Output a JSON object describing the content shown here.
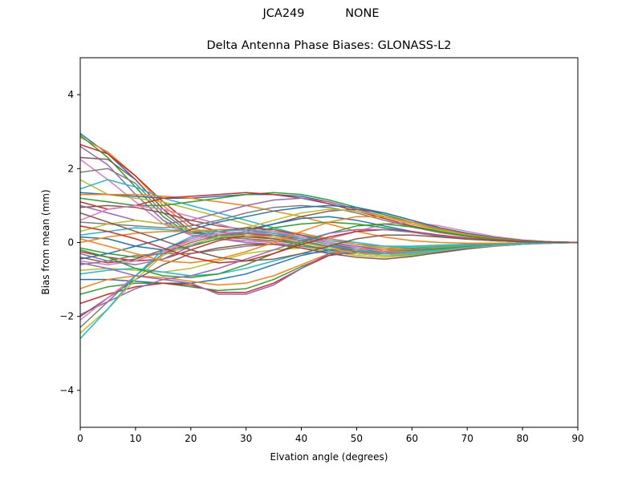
{
  "figure": {
    "suptitle": "JCA249           NONE",
    "title": "Delta Antenna Phase Biases: GLONASS-L2"
  },
  "chart_data": {
    "type": "line",
    "suptitle": "JCA249           NONE",
    "title": "Delta Antenna Phase Biases: GLONASS-L2",
    "xlabel": "Elvation angle (degrees)",
    "ylabel": "Bias from mean (mm)",
    "xlim": [
      0,
      90
    ],
    "ylim": [
      -5,
      5
    ],
    "xticks": [
      0,
      10,
      20,
      30,
      40,
      50,
      60,
      70,
      80,
      90
    ],
    "yticks": [
      -4,
      -2,
      0,
      2,
      4
    ],
    "ytick_labels": [
      "−4",
      "−2",
      "0",
      "2",
      "4"
    ],
    "grid": false,
    "legend": "none",
    "x": [
      0,
      5,
      10,
      15,
      20,
      25,
      30,
      35,
      40,
      45,
      50,
      55,
      60,
      65,
      70,
      75,
      80,
      85,
      90
    ],
    "colors": [
      "#1f77b4",
      "#ff7f0e",
      "#2ca02c",
      "#d62728",
      "#9467bd",
      "#8c564b",
      "#e377c2",
      "#7f7f7f",
      "#bcbd22",
      "#17becf"
    ],
    "series": [
      {
        "name": "s1",
        "values": [
          2.95,
          2.4,
          1.7,
          0.9,
          0.3,
          0.1,
          0.05,
          0.0,
          -0.1,
          -0.2,
          -0.3,
          -0.3,
          -0.25,
          -0.2,
          -0.15,
          -0.1,
          -0.05,
          -0.02,
          0
        ]
      },
      {
        "name": "s2",
        "values": [
          2.85,
          2.45,
          1.8,
          1.0,
          0.4,
          0.2,
          0.1,
          0.0,
          -0.1,
          -0.15,
          -0.25,
          -0.3,
          -0.25,
          -0.2,
          -0.12,
          -0.08,
          -0.04,
          -0.02,
          0
        ]
      },
      {
        "name": "s3",
        "values": [
          2.9,
          2.3,
          1.5,
          0.7,
          0.2,
          0.15,
          0.1,
          0.05,
          -0.05,
          -0.2,
          -0.3,
          -0.35,
          -0.3,
          -0.2,
          -0.12,
          -0.08,
          -0.04,
          -0.02,
          0
        ]
      },
      {
        "name": "s4",
        "values": [
          2.65,
          2.4,
          1.8,
          1.1,
          0.5,
          0.3,
          0.2,
          0.1,
          0.0,
          -0.1,
          -0.2,
          -0.25,
          -0.2,
          -0.15,
          -0.1,
          -0.06,
          -0.03,
          -0.01,
          0
        ]
      },
      {
        "name": "s5",
        "values": [
          2.6,
          2.1,
          1.3,
          0.6,
          0.2,
          0.1,
          0.0,
          -0.05,
          -0.1,
          -0.2,
          -0.3,
          -0.3,
          -0.25,
          -0.18,
          -0.1,
          -0.06,
          -0.03,
          -0.01,
          0
        ]
      },
      {
        "name": "s6",
        "values": [
          2.3,
          2.25,
          1.7,
          0.9,
          0.3,
          0.2,
          0.15,
          0.1,
          0.0,
          -0.1,
          -0.2,
          -0.2,
          -0.18,
          -0.12,
          -0.08,
          -0.05,
          -0.02,
          -0.01,
          0
        ]
      },
      {
        "name": "s7",
        "values": [
          2.25,
          1.7,
          1.1,
          0.5,
          0.2,
          0.1,
          0.05,
          0.0,
          -0.1,
          -0.2,
          -0.25,
          -0.3,
          -0.25,
          -0.18,
          -0.1,
          -0.06,
          -0.03,
          -0.01,
          0
        ]
      },
      {
        "name": "s8",
        "values": [
          1.9,
          2.0,
          1.6,
          0.8,
          0.25,
          0.2,
          0.1,
          0.05,
          0.0,
          -0.1,
          -0.15,
          -0.2,
          -0.15,
          -0.1,
          -0.06,
          -0.04,
          -0.02,
          -0.01,
          0
        ]
      },
      {
        "name": "s9",
        "values": [
          1.7,
          1.3,
          1.2,
          1.1,
          0.9,
          0.7,
          0.5,
          0.3,
          0.1,
          0.0,
          -0.1,
          -0.15,
          -0.12,
          -0.08,
          -0.05,
          -0.03,
          -0.02,
          -0.01,
          0
        ]
      },
      {
        "name": "s10",
        "values": [
          1.45,
          1.7,
          1.5,
          1.2,
          1.0,
          0.8,
          0.6,
          0.4,
          0.2,
          0.05,
          -0.05,
          -0.1,
          -0.1,
          -0.07,
          -0.05,
          -0.03,
          -0.02,
          -0.01,
          0
        ]
      },
      {
        "name": "s11",
        "values": [
          1.35,
          1.3,
          1.25,
          1.2,
          1.2,
          1.25,
          1.3,
          1.3,
          1.25,
          1.1,
          0.9,
          0.7,
          0.5,
          0.35,
          0.22,
          0.12,
          0.06,
          0.02,
          0
        ]
      },
      {
        "name": "s12",
        "values": [
          1.3,
          1.3,
          1.3,
          1.25,
          1.2,
          1.1,
          1.0,
          0.85,
          0.7,
          0.5,
          0.3,
          0.15,
          0.05,
          0.0,
          -0.02,
          -0.02,
          -0.01,
          0.0,
          0
        ]
      },
      {
        "name": "s13",
        "values": [
          1.2,
          1.1,
          1.0,
          1.0,
          1.1,
          1.2,
          1.3,
          1.35,
          1.3,
          1.15,
          0.95,
          0.75,
          0.55,
          0.38,
          0.23,
          0.12,
          0.06,
          0.02,
          0
        ]
      },
      {
        "name": "s14",
        "values": [
          1.1,
          0.9,
          1.0,
          1.2,
          1.25,
          1.3,
          1.35,
          1.3,
          1.2,
          1.05,
          0.85,
          0.65,
          0.45,
          0.3,
          0.18,
          0.1,
          0.05,
          0.02,
          0
        ]
      },
      {
        "name": "s15",
        "values": [
          1.0,
          0.8,
          0.6,
          0.5,
          0.6,
          0.8,
          1.0,
          1.15,
          1.2,
          1.1,
          0.9,
          0.7,
          0.5,
          0.33,
          0.2,
          0.1,
          0.05,
          0.02,
          0
        ]
      },
      {
        "name": "s16",
        "values": [
          0.95,
          1.0,
          0.95,
          0.8,
          0.6,
          0.45,
          0.35,
          0.5,
          0.7,
          0.85,
          0.9,
          0.8,
          0.6,
          0.4,
          0.25,
          0.13,
          0.06,
          0.02,
          0
        ]
      },
      {
        "name": "s17",
        "values": [
          0.6,
          0.9,
          1.0,
          0.9,
          0.7,
          0.5,
          0.3,
          0.15,
          0.05,
          0.1,
          0.3,
          0.5,
          0.55,
          0.45,
          0.3,
          0.16,
          0.07,
          0.02,
          0
        ]
      },
      {
        "name": "s18",
        "values": [
          0.55,
          0.5,
          0.45,
          0.4,
          0.45,
          0.6,
          0.8,
          0.95,
          1.0,
          0.95,
          0.8,
          0.6,
          0.42,
          0.27,
          0.16,
          0.08,
          0.04,
          0.01,
          0
        ]
      },
      {
        "name": "s19",
        "values": [
          0.3,
          0.5,
          0.6,
          0.5,
          0.35,
          0.3,
          0.4,
          0.6,
          0.8,
          0.9,
          0.85,
          0.7,
          0.5,
          0.33,
          0.2,
          0.1,
          0.05,
          0.02,
          0
        ]
      },
      {
        "name": "s20",
        "values": [
          0.2,
          0.3,
          0.4,
          0.35,
          0.3,
          0.3,
          0.35,
          0.3,
          0.2,
          0.1,
          0.0,
          -0.1,
          -0.15,
          -0.12,
          -0.08,
          -0.05,
          -0.02,
          -0.01,
          0
        ]
      },
      {
        "name": "s21",
        "values": [
          0.15,
          0.1,
          -0.1,
          -0.2,
          -0.1,
          0.1,
          0.3,
          0.5,
          0.65,
          0.7,
          0.6,
          0.45,
          0.3,
          0.18,
          0.1,
          0.05,
          0.02,
          0.01,
          0
        ]
      },
      {
        "name": "s22",
        "values": [
          0.0,
          0.15,
          0.25,
          0.3,
          0.3,
          0.35,
          0.35,
          0.3,
          0.25,
          0.1,
          -0.05,
          -0.15,
          -0.2,
          -0.15,
          -0.1,
          -0.06,
          -0.03,
          -0.01,
          0
        ]
      },
      {
        "name": "s23",
        "values": [
          -0.15,
          -0.3,
          -0.4,
          -0.3,
          -0.1,
          0.1,
          0.25,
          0.4,
          0.5,
          0.55,
          0.5,
          0.4,
          0.28,
          0.17,
          0.1,
          0.05,
          0.02,
          0.01,
          0
        ]
      },
      {
        "name": "s24",
        "values": [
          -0.25,
          -0.4,
          -0.5,
          -0.45,
          -0.2,
          0.05,
          0.2,
          0.2,
          0.1,
          -0.05,
          -0.15,
          -0.25,
          -0.3,
          -0.25,
          -0.16,
          -0.09,
          -0.04,
          -0.01,
          0
        ]
      },
      {
        "name": "s25",
        "values": [
          -0.3,
          -0.5,
          -0.6,
          -0.45,
          -0.1,
          0.2,
          0.3,
          0.25,
          0.15,
          0.0,
          -0.1,
          -0.2,
          -0.25,
          -0.2,
          -0.13,
          -0.07,
          -0.03,
          -0.01,
          0
        ]
      },
      {
        "name": "s26",
        "values": [
          -0.4,
          -0.55,
          -0.45,
          -0.2,
          0.1,
          0.3,
          0.4,
          0.35,
          0.2,
          0.0,
          -0.15,
          -0.25,
          -0.25,
          -0.2,
          -0.13,
          -0.07,
          -0.03,
          -0.01,
          0
        ]
      },
      {
        "name": "s27",
        "values": [
          -0.5,
          -0.6,
          -0.5,
          -0.25,
          0.05,
          0.25,
          0.3,
          0.2,
          0.05,
          -0.1,
          -0.25,
          -0.35,
          -0.35,
          -0.28,
          -0.18,
          -0.1,
          -0.05,
          -0.02,
          0
        ]
      },
      {
        "name": "s28",
        "values": [
          -0.6,
          -0.5,
          -0.35,
          -0.3,
          -0.3,
          -0.2,
          -0.1,
          -0.05,
          -0.1,
          -0.2,
          -0.3,
          -0.35,
          -0.3,
          -0.22,
          -0.14,
          -0.08,
          -0.04,
          -0.01,
          0
        ]
      },
      {
        "name": "s29",
        "values": [
          -0.75,
          -0.7,
          -0.75,
          -0.8,
          -0.7,
          -0.5,
          -0.3,
          -0.2,
          -0.15,
          -0.25,
          -0.35,
          -0.4,
          -0.35,
          -0.25,
          -0.15,
          -0.08,
          -0.04,
          -0.01,
          0
        ]
      },
      {
        "name": "s30",
        "values": [
          -0.85,
          -0.75,
          -0.7,
          -0.8,
          -0.9,
          -0.85,
          -0.7,
          -0.5,
          -0.3,
          -0.25,
          -0.3,
          -0.35,
          -0.32,
          -0.24,
          -0.15,
          -0.08,
          -0.04,
          -0.01,
          0
        ]
      },
      {
        "name": "s31",
        "values": [
          -1.0,
          -1.0,
          -1.05,
          -1.1,
          -1.1,
          -1.0,
          -0.85,
          -0.6,
          -0.35,
          -0.2,
          -0.2,
          -0.25,
          -0.25,
          -0.2,
          -0.13,
          -0.07,
          -0.03,
          -0.01,
          0
        ]
      },
      {
        "name": "s32",
        "values": [
          -1.25,
          -1.0,
          -0.9,
          -0.95,
          -1.05,
          -1.15,
          -1.1,
          -0.9,
          -0.6,
          -0.3,
          -0.2,
          -0.2,
          -0.2,
          -0.16,
          -0.1,
          -0.06,
          -0.03,
          -0.01,
          0
        ]
      },
      {
        "name": "s33",
        "values": [
          -1.4,
          -1.2,
          -1.1,
          -1.1,
          -1.2,
          -1.3,
          -1.25,
          -1.0,
          -0.65,
          -0.35,
          -0.25,
          -0.25,
          -0.22,
          -0.17,
          -0.11,
          -0.06,
          -0.03,
          -0.01,
          0
        ]
      },
      {
        "name": "s34",
        "values": [
          -1.65,
          -1.4,
          -1.2,
          -1.1,
          -1.15,
          -1.35,
          -1.35,
          -1.1,
          -0.7,
          -0.35,
          -0.25,
          -0.3,
          -0.28,
          -0.2,
          -0.13,
          -0.07,
          -0.03,
          -0.01,
          0
        ]
      },
      {
        "name": "s35",
        "values": [
          -1.95,
          -1.6,
          -1.25,
          -1.0,
          -1.1,
          -1.4,
          -1.4,
          -1.15,
          -0.7,
          -0.3,
          -0.3,
          -0.35,
          -0.3,
          -0.22,
          -0.14,
          -0.08,
          -0.04,
          -0.01,
          0
        ]
      },
      {
        "name": "s36",
        "values": [
          -2.0,
          -1.5,
          -1.0,
          -0.6,
          -0.3,
          -0.15,
          -0.05,
          -0.05,
          -0.15,
          -0.3,
          -0.4,
          -0.45,
          -0.38,
          -0.27,
          -0.17,
          -0.09,
          -0.04,
          -0.01,
          0
        ]
      },
      {
        "name": "s37",
        "values": [
          -2.1,
          -1.5,
          -0.9,
          -0.3,
          0.1,
          0.3,
          0.35,
          0.3,
          0.15,
          0.0,
          -0.15,
          -0.25,
          -0.25,
          -0.2,
          -0.13,
          -0.07,
          -0.03,
          -0.01,
          0
        ]
      },
      {
        "name": "s38",
        "values": [
          -2.3,
          -1.6,
          -0.9,
          -0.3,
          0.0,
          0.2,
          0.25,
          0.2,
          0.05,
          -0.1,
          -0.25,
          -0.3,
          -0.28,
          -0.22,
          -0.14,
          -0.08,
          -0.04,
          -0.01,
          0
        ]
      },
      {
        "name": "s39",
        "values": [
          -2.45,
          -1.8,
          -1.0,
          -0.35,
          -0.05,
          0.15,
          0.2,
          0.15,
          0.0,
          -0.15,
          -0.3,
          -0.35,
          -0.3,
          -0.22,
          -0.14,
          -0.08,
          -0.04,
          -0.01,
          0
        ]
      },
      {
        "name": "s40",
        "values": [
          -2.6,
          -1.8,
          -0.9,
          -0.2,
          0.15,
          0.3,
          0.35,
          0.25,
          0.1,
          -0.05,
          -0.2,
          -0.3,
          -0.28,
          -0.2,
          -0.13,
          -0.07,
          -0.03,
          -0.01,
          0
        ]
      },
      {
        "name": "s41",
        "values": [
          -0.45,
          -0.3,
          -0.1,
          0.1,
          0.35,
          0.55,
          0.7,
          0.85,
          0.95,
          1.0,
          0.95,
          0.8,
          0.6,
          0.4,
          0.25,
          0.13,
          0.06,
          0.02,
          0
        ]
      },
      {
        "name": "s42",
        "values": [
          0.1,
          -0.1,
          -0.3,
          -0.5,
          -0.55,
          -0.45,
          -0.25,
          0.0,
          0.3,
          0.55,
          0.7,
          0.7,
          0.55,
          0.37,
          0.22,
          0.11,
          0.05,
          0.02,
          0
        ]
      },
      {
        "name": "s43",
        "values": [
          -0.2,
          -0.4,
          -0.7,
          -0.9,
          -0.95,
          -0.85,
          -0.6,
          -0.3,
          0.0,
          0.25,
          0.45,
          0.5,
          0.42,
          0.3,
          0.18,
          0.09,
          0.04,
          0.01,
          0
        ]
      },
      {
        "name": "s44",
        "values": [
          0.45,
          0.3,
          0.1,
          -0.15,
          -0.4,
          -0.55,
          -0.5,
          -0.3,
          -0.05,
          0.15,
          0.3,
          0.35,
          0.3,
          0.2,
          0.12,
          0.06,
          0.03,
          0.01,
          0
        ]
      },
      {
        "name": "s45",
        "values": [
          -0.55,
          -0.7,
          -0.9,
          -1.0,
          -0.9,
          -0.7,
          -0.45,
          -0.2,
          0.05,
          0.25,
          0.35,
          0.35,
          0.28,
          0.18,
          0.1,
          0.05,
          0.02,
          0.01,
          0
        ]
      },
      {
        "name": "s46",
        "values": [
          0.8,
          0.55,
          0.3,
          0.05,
          -0.2,
          -0.4,
          -0.5,
          -0.45,
          -0.3,
          -0.1,
          0.1,
          0.2,
          0.2,
          0.15,
          0.09,
          0.05,
          0.02,
          0.01,
          0
        ]
      }
    ]
  }
}
